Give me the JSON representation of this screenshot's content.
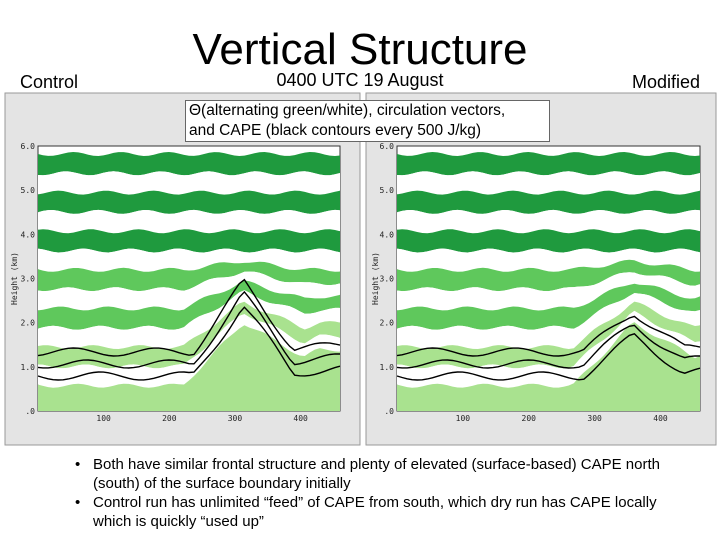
{
  "title": "Vertical Structure",
  "subtitle": "0400 UTC 19 August",
  "left_label": "Control",
  "right_label": "Modified",
  "caption": [
    "Θ(alternating green/white), circulation vectors,",
    "and CAPE (black contours every 500 J/kg)"
  ],
  "panels": [
    {
      "yticks": [
        "6.0",
        "5.0",
        "4.0",
        "3.0",
        "2.0",
        "1.0",
        ".0"
      ],
      "xticks": [
        "100",
        "200",
        "300",
        "400"
      ],
      "ylabel": "Height (km)"
    },
    {
      "yticks": [
        "6.0",
        "5.0",
        "4.0",
        "3.0",
        "2.0",
        "1.0",
        ".0"
      ],
      "xticks": [
        "100",
        "200",
        "300",
        "400"
      ],
      "ylabel": "Height (km)"
    }
  ],
  "bullets": [
    "Both have similar frontal structure and plenty of elevated (surface-based) CAPE north (south) of the surface boundary initially",
    "Control run has unlimited “feed” of CAPE from south, which dry run has CAPE locally which is quickly “used up”"
  ]
}
